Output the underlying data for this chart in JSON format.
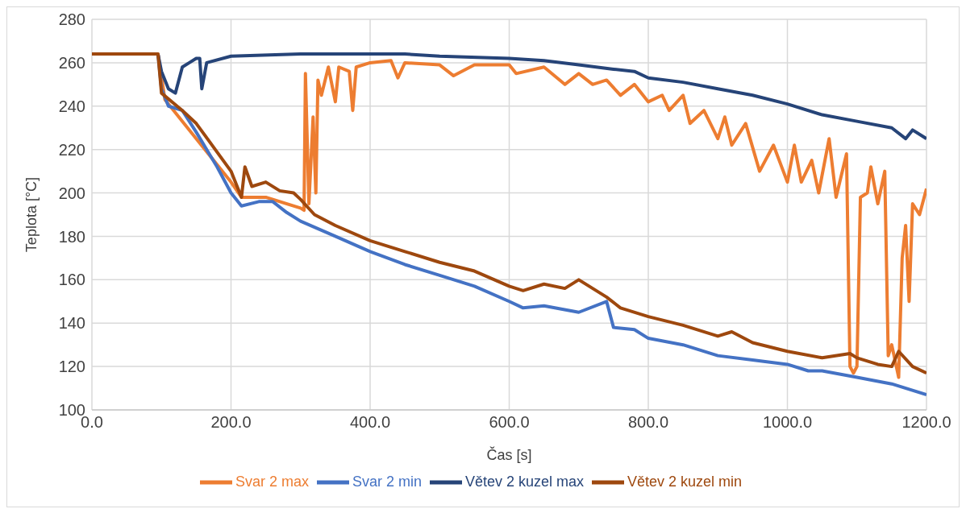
{
  "chart_data": {
    "type": "line",
    "xlabel": "Čas [s]",
    "ylabel": "Teplota [°C]",
    "xlim": [
      0,
      1200
    ],
    "ylim": [
      100,
      280
    ],
    "xticks": [
      {
        "value": 0,
        "label": "0.0"
      },
      {
        "value": 200,
        "label": "200.0"
      },
      {
        "value": 400,
        "label": "400.0"
      },
      {
        "value": 600,
        "label": "600.0"
      },
      {
        "value": 800,
        "label": "800.0"
      },
      {
        "value": 1000,
        "label": "1000.0"
      },
      {
        "value": 1200,
        "label": "1200.0"
      }
    ],
    "yticks": [
      100,
      120,
      140,
      160,
      180,
      200,
      220,
      240,
      260,
      280
    ],
    "grid": true,
    "legend": "bottom",
    "marker": "none",
    "line_style": "solid",
    "series": [
      {
        "name": "Svar 2 max",
        "color": "#ed7d31",
        "x": [
          0,
          95,
          105,
          150,
          200,
          215,
          250,
          300,
          305,
          307,
          312,
          318,
          322,
          325,
          330,
          340,
          350,
          355,
          370,
          375,
          380,
          400,
          430,
          440,
          450,
          500,
          520,
          550,
          600,
          610,
          650,
          680,
          700,
          720,
          740,
          760,
          780,
          800,
          820,
          830,
          850,
          860,
          880,
          900,
          910,
          920,
          940,
          960,
          980,
          1000,
          1010,
          1020,
          1035,
          1045,
          1060,
          1070,
          1085,
          1090,
          1095,
          1100,
          1105,
          1115,
          1120,
          1130,
          1140,
          1145,
          1150,
          1160,
          1165,
          1170,
          1175,
          1180,
          1190,
          1200
        ],
        "values": [
          264,
          264,
          243,
          225,
          205,
          198,
          198,
          193,
          192,
          255,
          195,
          235,
          200,
          252,
          245,
          258,
          242,
          258,
          256,
          238,
          258,
          260,
          261,
          253,
          260,
          259,
          254,
          259,
          259,
          255,
          258,
          250,
          255,
          250,
          252,
          245,
          250,
          242,
          245,
          238,
          245,
          232,
          238,
          225,
          235,
          222,
          232,
          210,
          222,
          205,
          222,
          205,
          215,
          200,
          225,
          198,
          218,
          120,
          117,
          120,
          198,
          200,
          212,
          195,
          210,
          125,
          130,
          115,
          170,
          185,
          150,
          195,
          190,
          202
        ]
      },
      {
        "name": "Svar 2 min",
        "color": "#4472c4",
        "x": [
          95,
          100,
          110,
          130,
          150,
          180,
          200,
          215,
          240,
          260,
          280,
          300,
          350,
          400,
          450,
          500,
          550,
          600,
          620,
          650,
          700,
          740,
          750,
          780,
          800,
          850,
          900,
          950,
          1000,
          1030,
          1050,
          1100,
          1150,
          1200
        ],
        "values": [
          264,
          248,
          240,
          238,
          228,
          212,
          200,
          194,
          196,
          196,
          191,
          187,
          180,
          173,
          167,
          162,
          157,
          150,
          147,
          148,
          145,
          150,
          138,
          137,
          133,
          130,
          125,
          123,
          121,
          118,
          118,
          115,
          112,
          107
        ]
      },
      {
        "name": "Větev 2 kuzel max",
        "color": "#264478",
        "x": [
          95,
          100,
          110,
          120,
          130,
          140,
          150,
          155,
          158,
          165,
          200,
          300,
          400,
          450,
          500,
          600,
          650,
          700,
          750,
          780,
          800,
          850,
          900,
          950,
          1000,
          1050,
          1100,
          1150,
          1170,
          1180,
          1200
        ],
        "values": [
          264,
          256,
          248,
          246,
          258,
          260,
          262,
          262,
          248,
          260,
          263,
          264,
          264,
          264,
          263,
          262,
          261,
          259,
          257,
          256,
          253,
          251,
          248,
          245,
          241,
          236,
          233,
          230,
          225,
          229,
          225
        ]
      },
      {
        "name": "Větev 2 kuzel min",
        "color": "#9e480e",
        "x": [
          0,
          95,
          100,
          130,
          150,
          200,
          215,
          220,
          230,
          250,
          270,
          290,
          300,
          320,
          350,
          400,
          450,
          500,
          550,
          600,
          620,
          650,
          680,
          700,
          740,
          760,
          800,
          850,
          900,
          920,
          950,
          1000,
          1050,
          1090,
          1100,
          1130,
          1150,
          1160,
          1180,
          1200
        ],
        "values": [
          264,
          264,
          246,
          238,
          232,
          210,
          198,
          212,
          203,
          205,
          201,
          200,
          197,
          190,
          185,
          178,
          173,
          168,
          164,
          157,
          155,
          158,
          156,
          160,
          152,
          147,
          143,
          139,
          134,
          136,
          131,
          127,
          124,
          126,
          124,
          121,
          120,
          127,
          120,
          117
        ]
      }
    ]
  }
}
